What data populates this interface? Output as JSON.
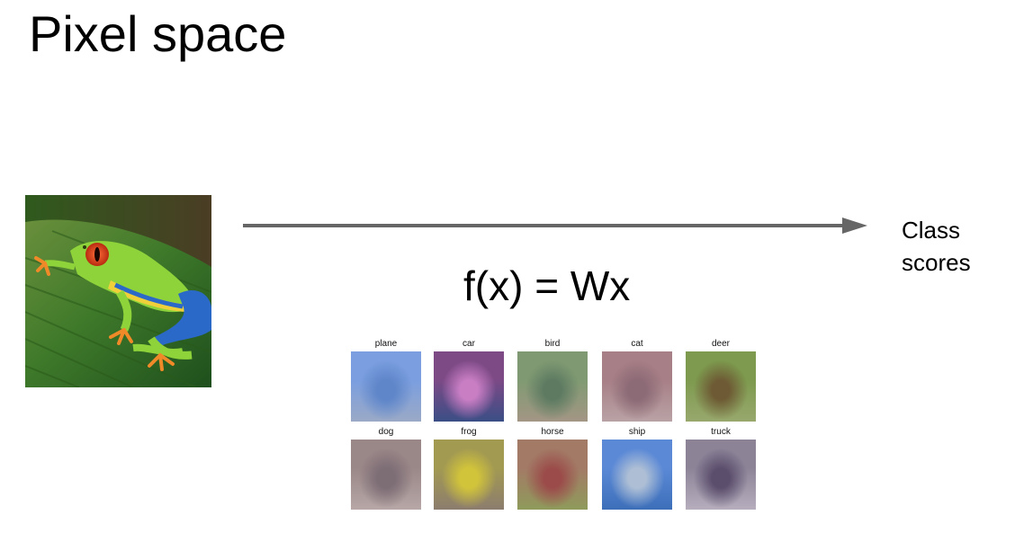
{
  "slide": {
    "title": "Pixel space",
    "formula": "f(x) = Wx",
    "output_label_line1": "Class",
    "output_label_line2": "scores"
  },
  "input_image": {
    "subject": "red-eyed tree frog on a green leaf",
    "colors": {
      "leaf": "#3f7a2a",
      "frog_body": "#8fd33a",
      "frog_eye": "#d43a18",
      "frog_leg_blue": "#2b69c8",
      "toes": "#f08a28"
    }
  },
  "arrow": {
    "color": "#666666"
  },
  "templates": [
    {
      "label": "plane",
      "colors": [
        "#7a9ee0",
        "#5f86c9",
        "#9aa9c6"
      ]
    },
    {
      "label": "car",
      "colors": [
        "#7d4a86",
        "#c97ec4",
        "#3b4e86"
      ]
    },
    {
      "label": "bird",
      "colors": [
        "#7f9a72",
        "#5e7b62",
        "#a39684"
      ]
    },
    {
      "label": "cat",
      "colors": [
        "#a77f86",
        "#8c6a76",
        "#b9a2a5"
      ]
    },
    {
      "label": "deer",
      "colors": [
        "#7d9a4e",
        "#6e5b35",
        "#98a86d"
      ]
    },
    {
      "label": "dog",
      "colors": [
        "#9a8788",
        "#7d6d75",
        "#b7a7a6"
      ]
    },
    {
      "label": "frog",
      "colors": [
        "#a39a52",
        "#d2c43a",
        "#8c7d6e"
      ]
    },
    {
      "label": "horse",
      "colors": [
        "#a37a66",
        "#9b4c4a",
        "#8f9b5b"
      ]
    },
    {
      "label": "ship",
      "colors": [
        "#5b89d6",
        "#aebfd5",
        "#3d6fb9"
      ]
    },
    {
      "label": "truck",
      "colors": [
        "#8c8397",
        "#5b4e6d",
        "#b6aebd"
      ]
    }
  ]
}
